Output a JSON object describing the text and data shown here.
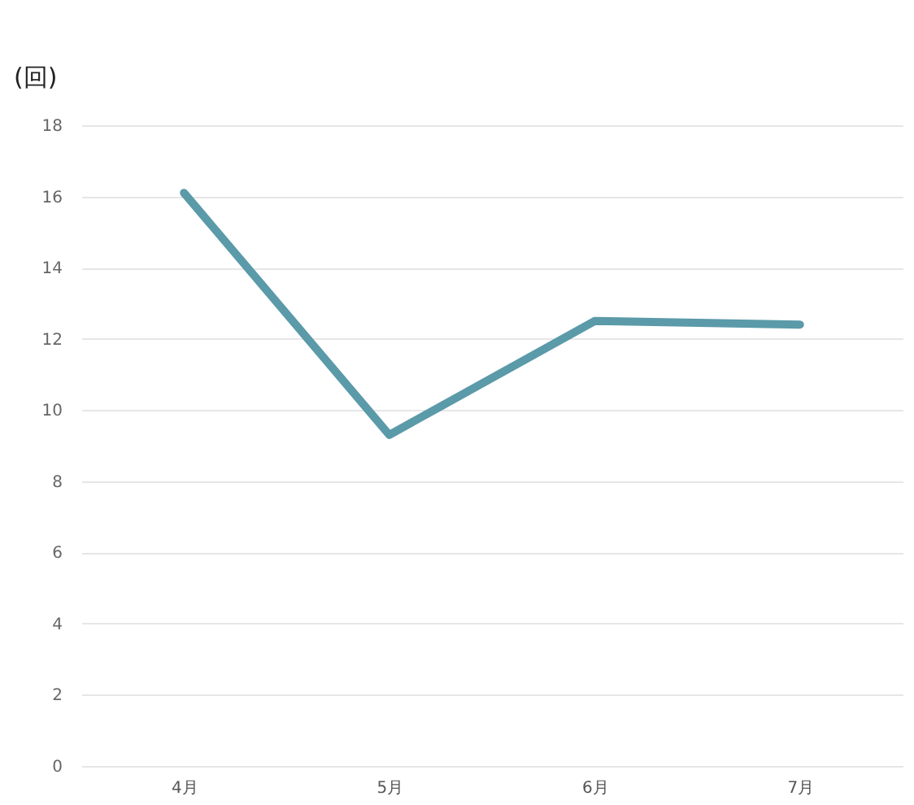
{
  "chart_data": {
    "type": "line",
    "ylabel": "(回)",
    "categories": [
      "4月",
      "5月",
      "6月",
      "7月"
    ],
    "series": [
      {
        "color": "#5b9aa9",
        "values": [
          16.1,
          9.3,
          12.5,
          12.4
        ]
      }
    ],
    "ylim": [
      0,
      18
    ],
    "yticks": [
      0,
      2,
      4,
      6,
      8,
      10,
      12,
      14,
      16,
      18
    ],
    "grid": "y",
    "legend": false,
    "marker": "none",
    "line_style": "solid"
  }
}
